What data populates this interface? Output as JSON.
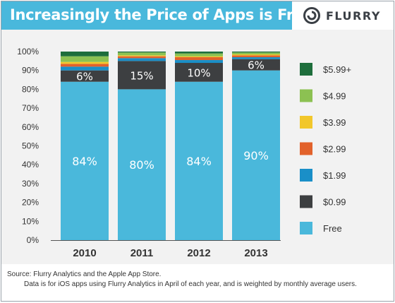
{
  "header": {
    "title": "Increasingly the Price of Apps is Free",
    "logo_text": "FLURRY"
  },
  "colors": {
    "title_bar": "#49b8dc",
    "plot_background": "#f2f2f2"
  },
  "chart_data": {
    "type": "bar",
    "stacked": true,
    "categories": [
      "2010",
      "2011",
      "2012",
      "2013"
    ],
    "ylim": [
      0,
      100
    ],
    "yticks": [
      "0%",
      "10%",
      "20%",
      "30%",
      "40%",
      "50%",
      "60%",
      "70%",
      "80%",
      "90%",
      "100%"
    ],
    "grid": false,
    "legend_position": "right",
    "series": [
      {
        "name": "Free",
        "color": "#4ab8db",
        "values": [
          84,
          80,
          84,
          90
        ],
        "labels": [
          "84%",
          "80%",
          "84%",
          "90%"
        ]
      },
      {
        "name": "$0.99",
        "color": "#3d3f41",
        "values": [
          6,
          15,
          10,
          6
        ],
        "labels": [
          "6%",
          "15%",
          "10%",
          "6%"
        ]
      },
      {
        "name": "$1.99",
        "color": "#1a8fc8",
        "values": [
          2,
          1.5,
          1.5,
          1
        ]
      },
      {
        "name": "$2.99",
        "color": "#e2622b",
        "values": [
          1.5,
          1,
          1.5,
          1
        ]
      },
      {
        "name": "$3.99",
        "color": "#f2c72b",
        "values": [
          1,
          0.5,
          0.5,
          0.5
        ]
      },
      {
        "name": "$4.99",
        "color": "#8cc152",
        "values": [
          3,
          1.5,
          1.5,
          1
        ]
      },
      {
        "name": "$5.99+",
        "color": "#1e6e3c",
        "values": [
          2.5,
          0.5,
          1,
          0.5
        ]
      }
    ]
  },
  "source": {
    "line1": "Source: Flurry Analytics and the Apple App Store.",
    "line2": "Data is for iOS apps using Flurry Analytics in April of each year, and is weighted by monthly average users."
  }
}
